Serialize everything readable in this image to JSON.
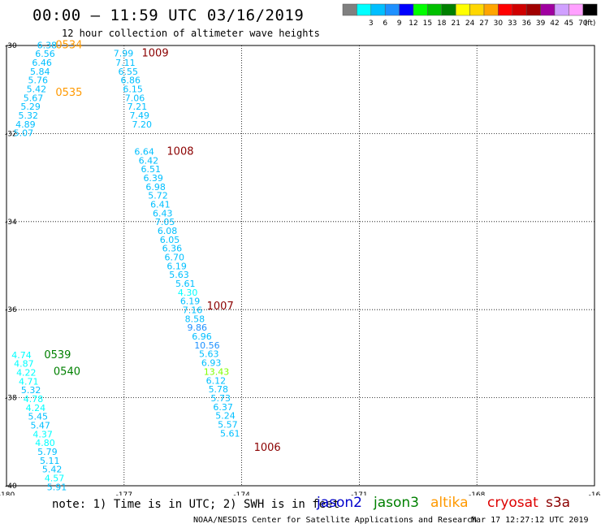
{
  "title": "00:00 – 11:59 UTC 03/16/2019",
  "subtitle": "12 hour collection of altimeter wave heights",
  "color_scale": {
    "unit": "(ft)",
    "swatches": [
      {
        "color": "#808080",
        "label": ""
      },
      {
        "color": "#00ffff",
        "label": "3"
      },
      {
        "color": "#00bfff",
        "label": "6"
      },
      {
        "color": "#1e90ff",
        "label": "9"
      },
      {
        "color": "#0000ff",
        "label": "12"
      },
      {
        "color": "#00ff00",
        "label": "15"
      },
      {
        "color": "#00c000",
        "label": "18"
      },
      {
        "color": "#008000",
        "label": "21"
      },
      {
        "color": "#ffff00",
        "label": "24"
      },
      {
        "color": "#ffd700",
        "label": "27"
      },
      {
        "color": "#ffa500",
        "label": "30"
      },
      {
        "color": "#ff0000",
        "label": "33"
      },
      {
        "color": "#d00000",
        "label": "36"
      },
      {
        "color": "#a00000",
        "label": "39"
      },
      {
        "color": "#a000a0",
        "label": "42"
      },
      {
        "color": "#d0a0ff",
        "label": "45"
      },
      {
        "color": "#ffa0ff",
        "label": "70"
      },
      {
        "color": "#000000",
        "label": ""
      }
    ]
  },
  "axes": {
    "lon_ticks": [
      "-180",
      "-177",
      "-174",
      "-171",
      "-168",
      "-16"
    ],
    "lat_ticks": [
      "-30",
      "-32",
      "-34",
      "-36",
      "-38",
      "-40"
    ],
    "lon_range": [
      -180,
      -165
    ],
    "lat_range": [
      -30,
      -40
    ]
  },
  "satellites": [
    {
      "name": "jason2",
      "color": "#0000cc"
    },
    {
      "name": "jason3",
      "color": "#008000"
    },
    {
      "name": "altika",
      "color": "#ff9900"
    },
    {
      "name": "cryosat",
      "color": "#dd0000"
    },
    {
      "name": "s3a",
      "color": "#8b0000"
    }
  ],
  "note": "note: 1) Time is in UTC; 2) SWH is in feet",
  "credit": "NOAA/NESDIS Center for Satellite Applications and Research",
  "timestamp": "Mar 17 12:27:12 UTC 2019",
  "tracks": [
    {
      "satellite": "altika",
      "time_labels": [
        {
          "text": "0534",
          "lon": -178.75,
          "lat": -30.06,
          "color": "#ff9900"
        },
        {
          "text": "0535",
          "lon": -178.75,
          "lat": -31.14,
          "color": "#ff9900"
        }
      ],
      "points": [
        {
          "v": "6.38",
          "lon": -179.22,
          "lat": -30.06,
          "color": "#00bfff"
        },
        {
          "v": "6.56",
          "lon": -179.27,
          "lat": -30.26,
          "color": "#00bfff"
        },
        {
          "v": "6.46",
          "lon": -179.35,
          "lat": -30.46,
          "color": "#00bfff"
        },
        {
          "v": "5.84",
          "lon": -179.4,
          "lat": -30.66,
          "color": "#00bfff"
        },
        {
          "v": "5.76",
          "lon": -179.45,
          "lat": -30.86,
          "color": "#00bfff"
        },
        {
          "v": "5.42",
          "lon": -179.49,
          "lat": -31.06,
          "color": "#00bfff"
        },
        {
          "v": "5.67",
          "lon": -179.57,
          "lat": -31.26,
          "color": "#00bfff"
        },
        {
          "v": "5.29",
          "lon": -179.64,
          "lat": -31.46,
          "color": "#00bfff"
        },
        {
          "v": "5.32",
          "lon": -179.7,
          "lat": -31.66,
          "color": "#00bfff"
        },
        {
          "v": "4.89",
          "lon": -179.77,
          "lat": -31.86,
          "color": "#00bfff"
        },
        {
          "v": "5.07",
          "lon": -179.82,
          "lat": -32.06,
          "color": "#00bfff"
        }
      ]
    },
    {
      "satellite": "s3a",
      "time_labels": [
        {
          "text": "1009",
          "lon": -176.55,
          "lat": -30.25,
          "color": "#8b0000"
        },
        {
          "text": "1008",
          "lon": -175.91,
          "lat": -32.48,
          "color": "#8b0000"
        },
        {
          "text": "1007",
          "lon": -174.89,
          "lat": -36.0,
          "color": "#8b0000"
        },
        {
          "text": "1006",
          "lon": -173.69,
          "lat": -39.21,
          "color": "#8b0000"
        }
      ],
      "points": [
        {
          "v": "7.99",
          "lon": -177.27,
          "lat": -30.25,
          "color": "#00bfff"
        },
        {
          "v": "7.11",
          "lon": -177.22,
          "lat": -30.46,
          "color": "#00bfff"
        },
        {
          "v": "6.55",
          "lon": -177.15,
          "lat": -30.66,
          "color": "#00bfff"
        },
        {
          "v": "6.86",
          "lon": -177.09,
          "lat": -30.86,
          "color": "#00bfff"
        },
        {
          "v": "6.15",
          "lon": -177.03,
          "lat": -31.06,
          "color": "#00bfff"
        },
        {
          "v": "7.06",
          "lon": -176.98,
          "lat": -31.26,
          "color": "#00bfff"
        },
        {
          "v": "7.21",
          "lon": -176.92,
          "lat": -31.46,
          "color": "#00bfff"
        },
        {
          "v": "7.49",
          "lon": -176.86,
          "lat": -31.66,
          "color": "#00bfff"
        },
        {
          "v": "7.20",
          "lon": -176.8,
          "lat": -31.86,
          "color": "#00bfff"
        },
        {
          "v": "6.64",
          "lon": -176.74,
          "lat": -32.48,
          "color": "#00bfff"
        },
        {
          "v": "6.42",
          "lon": -176.63,
          "lat": -32.68,
          "color": "#00bfff"
        },
        {
          "v": "6.51",
          "lon": -176.57,
          "lat": -32.88,
          "color": "#00bfff"
        },
        {
          "v": "6.39",
          "lon": -176.51,
          "lat": -33.08,
          "color": "#00bfff"
        },
        {
          "v": "6.98",
          "lon": -176.45,
          "lat": -33.28,
          "color": "#00bfff"
        },
        {
          "v": "5.72",
          "lon": -176.39,
          "lat": -33.48,
          "color": "#00bfff"
        },
        {
          "v": "6.41",
          "lon": -176.33,
          "lat": -33.68,
          "color": "#00bfff"
        },
        {
          "v": "6.43",
          "lon": -176.27,
          "lat": -33.88,
          "color": "#00bfff"
        },
        {
          "v": "7.05",
          "lon": -176.21,
          "lat": -34.08,
          "color": "#00bfff"
        },
        {
          "v": "6.08",
          "lon": -176.15,
          "lat": -34.28,
          "color": "#00bfff"
        },
        {
          "v": "6.05",
          "lon": -176.09,
          "lat": -34.48,
          "color": "#00bfff"
        },
        {
          "v": "6.36",
          "lon": -176.03,
          "lat": -34.68,
          "color": "#00bfff"
        },
        {
          "v": "6.70",
          "lon": -175.97,
          "lat": -34.88,
          "color": "#00bfff"
        },
        {
          "v": "6.19",
          "lon": -175.91,
          "lat": -35.08,
          "color": "#00bfff"
        },
        {
          "v": "5.63",
          "lon": -175.85,
          "lat": -35.28,
          "color": "#00bfff"
        },
        {
          "v": "5.61",
          "lon": -175.69,
          "lat": -35.48,
          "color": "#00bfff"
        },
        {
          "v": "4.30",
          "lon": -175.63,
          "lat": -35.68,
          "color": "#00ffff"
        },
        {
          "v": "6.19",
          "lon": -175.57,
          "lat": -35.88,
          "color": "#00bfff"
        },
        {
          "v": "7.16",
          "lon": -175.51,
          "lat": -36.08,
          "color": "#00bfff"
        },
        {
          "v": "8.58",
          "lon": -175.45,
          "lat": -36.28,
          "color": "#00bfff"
        },
        {
          "v": "9.86",
          "lon": -175.39,
          "lat": -36.48,
          "color": "#1e90ff"
        },
        {
          "v": "6.96",
          "lon": -175.27,
          "lat": -36.68,
          "color": "#00bfff"
        },
        {
          "v": "10.56",
          "lon": -175.21,
          "lat": -36.88,
          "color": "#1e90ff"
        },
        {
          "v": "5.63",
          "lon": -175.09,
          "lat": -37.08,
          "color": "#00bfff"
        },
        {
          "v": "6.93",
          "lon": -175.03,
          "lat": -37.28,
          "color": "#00bfff"
        },
        {
          "v": "13.43",
          "lon": -174.97,
          "lat": -37.48,
          "color": "#7fff00"
        },
        {
          "v": "6.12",
          "lon": -174.91,
          "lat": -37.68,
          "color": "#00bfff"
        },
        {
          "v": "5.78",
          "lon": -174.85,
          "lat": -37.88,
          "color": "#00bfff"
        },
        {
          "v": "5.73",
          "lon": -174.79,
          "lat": -38.08,
          "color": "#00bfff"
        },
        {
          "v": "6.37",
          "lon": -174.73,
          "lat": -38.28,
          "color": "#00bfff"
        },
        {
          "v": "5.24",
          "lon": -174.67,
          "lat": -38.48,
          "color": "#00bfff"
        },
        {
          "v": "5.57",
          "lon": -174.61,
          "lat": -38.68,
          "color": "#00bfff"
        },
        {
          "v": "5.61",
          "lon": -174.55,
          "lat": -38.88,
          "color": "#00bfff"
        }
      ]
    },
    {
      "satellite": "jason3",
      "time_labels": [
        {
          "text": "0539",
          "lon": -179.04,
          "lat": -37.1,
          "color": "#008000"
        },
        {
          "text": "0540",
          "lon": -178.8,
          "lat": -37.48,
          "color": "#008000"
        }
      ],
      "points": [
        {
          "v": "4.74",
          "lon": -179.87,
          "lat": -37.1,
          "color": "#00ffff"
        },
        {
          "v": "4.87",
          "lon": -179.81,
          "lat": -37.3,
          "color": "#00ffff"
        },
        {
          "v": "4.22",
          "lon": -179.75,
          "lat": -37.5,
          "color": "#00ffff"
        },
        {
          "v": "4.71",
          "lon": -179.69,
          "lat": -37.7,
          "color": "#00ffff"
        },
        {
          "v": "5.32",
          "lon": -179.63,
          "lat": -37.9,
          "color": "#00bfff"
        },
        {
          "v": "4.78",
          "lon": -179.57,
          "lat": -38.1,
          "color": "#00ffff"
        },
        {
          "v": "4.24",
          "lon": -179.51,
          "lat": -38.3,
          "color": "#00ffff"
        },
        {
          "v": "5.45",
          "lon": -179.45,
          "lat": -38.5,
          "color": "#00bfff"
        },
        {
          "v": "5.47",
          "lon": -179.39,
          "lat": -38.7,
          "color": "#00bfff"
        },
        {
          "v": "4.37",
          "lon": -179.33,
          "lat": -38.9,
          "color": "#00ffff"
        },
        {
          "v": "4.80",
          "lon": -179.27,
          "lat": -39.1,
          "color": "#00ffff"
        },
        {
          "v": "5.79",
          "lon": -179.21,
          "lat": -39.3,
          "color": "#00bfff"
        },
        {
          "v": "5.11",
          "lon": -179.15,
          "lat": -39.5,
          "color": "#00bfff"
        },
        {
          "v": "5.42",
          "lon": -179.09,
          "lat": -39.7,
          "color": "#00bfff"
        },
        {
          "v": "4.57",
          "lon": -179.03,
          "lat": -39.9,
          "color": "#00ffff"
        },
        {
          "v": "5.91",
          "lon": -178.97,
          "lat": -40.1,
          "color": "#00bfff"
        }
      ]
    }
  ]
}
